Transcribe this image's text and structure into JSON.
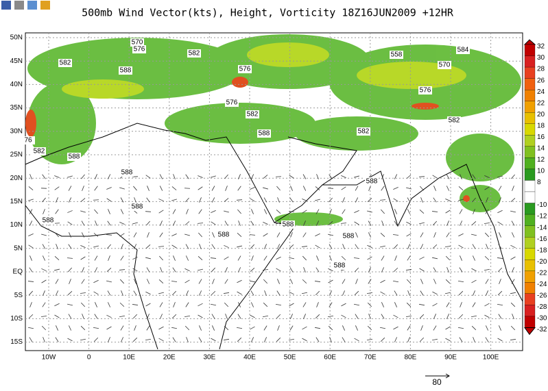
{
  "header": {
    "title": "500mb Wind Vector(kts), Height, Vorticity 18Z16JUN2009 +12HR"
  },
  "map": {
    "lat_labels": [
      "50N",
      "45N",
      "40N",
      "35N",
      "30N",
      "25N",
      "20N",
      "15N",
      "10N",
      "5N",
      "EQ",
      "5S",
      "10S",
      "15S"
    ],
    "lon_labels": [
      "10W",
      "0",
      "10E",
      "20E",
      "30E",
      "40E",
      "50E",
      "60E",
      "70E",
      "80E",
      "90E",
      "100E"
    ],
    "contour_labels": [
      "570",
      "576",
      "582",
      "582",
      "588",
      "576",
      "576",
      "582",
      "588",
      "582",
      "582",
      "576",
      "558",
      "584",
      "570",
      "582",
      "588",
      "588",
      "588",
      "588",
      "588",
      "588",
      "588",
      "588",
      "588",
      "76"
    ]
  },
  "colorbar": {
    "labels": [
      "32",
      "30",
      "28",
      "26",
      "24",
      "22",
      "20",
      "18",
      "16",
      "14",
      "12",
      "10",
      "8",
      "-10",
      "-12",
      "-14",
      "-16",
      "-18",
      "-20",
      "-22",
      "-24",
      "-26",
      "-28",
      "-30",
      "-32"
    ]
  },
  "reference_vector": {
    "label": "80"
  }
}
